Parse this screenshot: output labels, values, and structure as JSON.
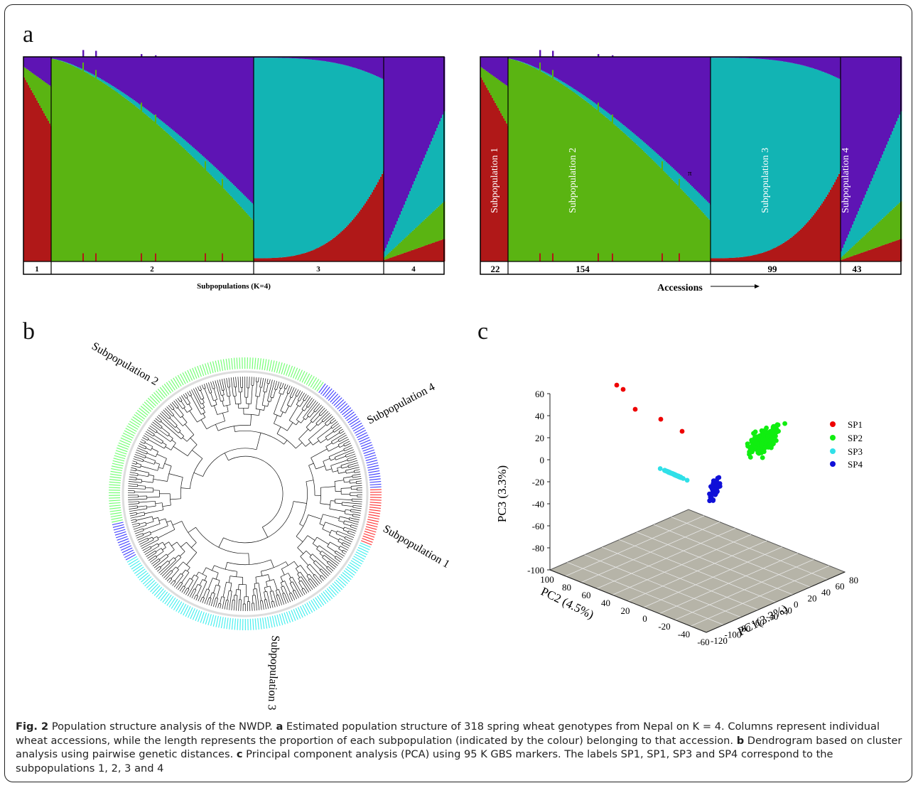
{
  "figure": {
    "panel_a_label": "a",
    "panel_b_label": "b",
    "panel_c_label": "c",
    "caption": {
      "fig_label": "Fig. 2",
      "lead": " Population structure analysis of the NWDP. ",
      "a_label": "a",
      "a_text": " Estimated population structure of 318 spring wheat genotypes from Nepal on K = 4. Columns represent individual wheat accessions, while the length represents the proportion of each subpopulation (indicated by the colour) belonging to that accession. ",
      "b_label": "b",
      "b_text": " Dendrogram based on cluster analysis using pairwise genetic distances. ",
      "c_label": "c",
      "c_text": " Principal component analysis (PCA) using 95 K GBS markers. The labels SP1, SP1, SP3 and SP4 correspond to the subpopulations 1, 2, 3 and 4"
    }
  },
  "colors": {
    "sp1": "#b01818",
    "sp2": "#5ab412",
    "sp3": "#12b4b4",
    "sp4": "#5e14b4",
    "tree_sp1": "#ff3030",
    "tree_sp2": "#6cff6c",
    "tree_sp3": "#3ceeee",
    "tree_sp4": "#3a3aff",
    "pca_sp1": "#ee0000",
    "pca_sp2": "#10ee10",
    "pca_sp3": "#30e0e8",
    "pca_sp4": "#1010d8"
  },
  "structure_left": {
    "group_labels": [
      "1",
      "2",
      "3",
      "4"
    ],
    "axis_label": "Subpopulations (K=4)"
  },
  "structure_right": {
    "group_counts": [
      "22",
      "154",
      "99",
      "43"
    ],
    "column_labels": [
      "Subpopulation 1",
      "Subpopulation 2",
      "Subpopulation 3",
      "Subpopulation 4"
    ],
    "axis_label": "Accessions",
    "marker": "π"
  },
  "dendrogram": {
    "labels": [
      "Subpopulation 2",
      "Subpopulation 4",
      "Subpopulation 1",
      "Subpopulation 3"
    ]
  },
  "chart_data": {
    "type": "scatter",
    "title": "",
    "xlabel": "PC1(3.3%)",
    "ylabel": "PC2 (4.5%)",
    "zlabel": "PC3 (3.3%)",
    "x_ticks": [
      "-120",
      "-100",
      "-80",
      "-60",
      "-40",
      "-20",
      "0",
      "20",
      "40",
      "60",
      "80"
    ],
    "y_ticks": [
      "-60",
      "-40",
      "-20",
      "0",
      "20",
      "40",
      "60",
      "80",
      "100"
    ],
    "z_ticks": [
      "60",
      "40",
      "20",
      "0",
      "-20",
      "-40",
      "-60",
      "-80",
      "-100"
    ],
    "xlim": [
      -120,
      80
    ],
    "ylim": [
      -60,
      100
    ],
    "zlim": [
      -100,
      60
    ],
    "legend_position": "right",
    "series": [
      {
        "name": "SP1",
        "color": "#ee0000"
      },
      {
        "name": "SP2",
        "color": "#10ee10"
      },
      {
        "name": "SP3",
        "color": "#30e0e8"
      },
      {
        "name": "SP4",
        "color": "#1010d8"
      }
    ]
  }
}
